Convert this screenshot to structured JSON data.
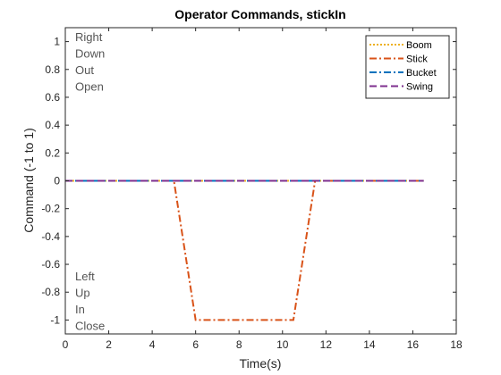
{
  "chart_data": {
    "type": "line",
    "title": "Operator Commands, stickIn",
    "xlabel": "Time(s)",
    "ylabel": "Command (-1 to 1)",
    "xlim": [
      0,
      18
    ],
    "ylim": [
      -1.1,
      1.1
    ],
    "x_ticks": [
      0,
      2,
      4,
      6,
      8,
      10,
      12,
      14,
      16,
      18
    ],
    "y_ticks": [
      1,
      0.8,
      0.6,
      0.4,
      0.2,
      0,
      -0.2,
      -0.4,
      -0.6,
      -0.8,
      -1
    ],
    "y_tick_labels": [
      "1",
      "0.8",
      "0.6",
      "0.4",
      "0.2",
      "0",
      "-0.2",
      "-0.4",
      "-0.6",
      "-0.8",
      "-1"
    ],
    "grid": false,
    "legend_position": "top-right",
    "series": [
      {
        "name": "Boom",
        "color": "#EDB120",
        "style": "dotted",
        "x": [
          0,
          16.5
        ],
        "y": [
          0,
          0
        ]
      },
      {
        "name": "Stick",
        "color": "#D95319",
        "style": "dashdot",
        "x": [
          0,
          5,
          6,
          10.5,
          11.5,
          16.5
        ],
        "y": [
          0,
          0,
          -1,
          -1,
          0,
          0
        ]
      },
      {
        "name": "Bucket",
        "color": "#0072BD",
        "style": "dashdot",
        "x": [
          0,
          16.5
        ],
        "y": [
          0,
          0
        ]
      },
      {
        "name": "Swing",
        "color": "#7E2F8E",
        "style": "dashed",
        "x": [
          0,
          16.5
        ],
        "y": [
          0,
          0
        ]
      }
    ],
    "annotations_top": [
      "Right",
      "Down",
      "Out",
      "Open"
    ],
    "annotations_bottom": [
      "Left",
      "Up",
      "In",
      "Close"
    ]
  }
}
